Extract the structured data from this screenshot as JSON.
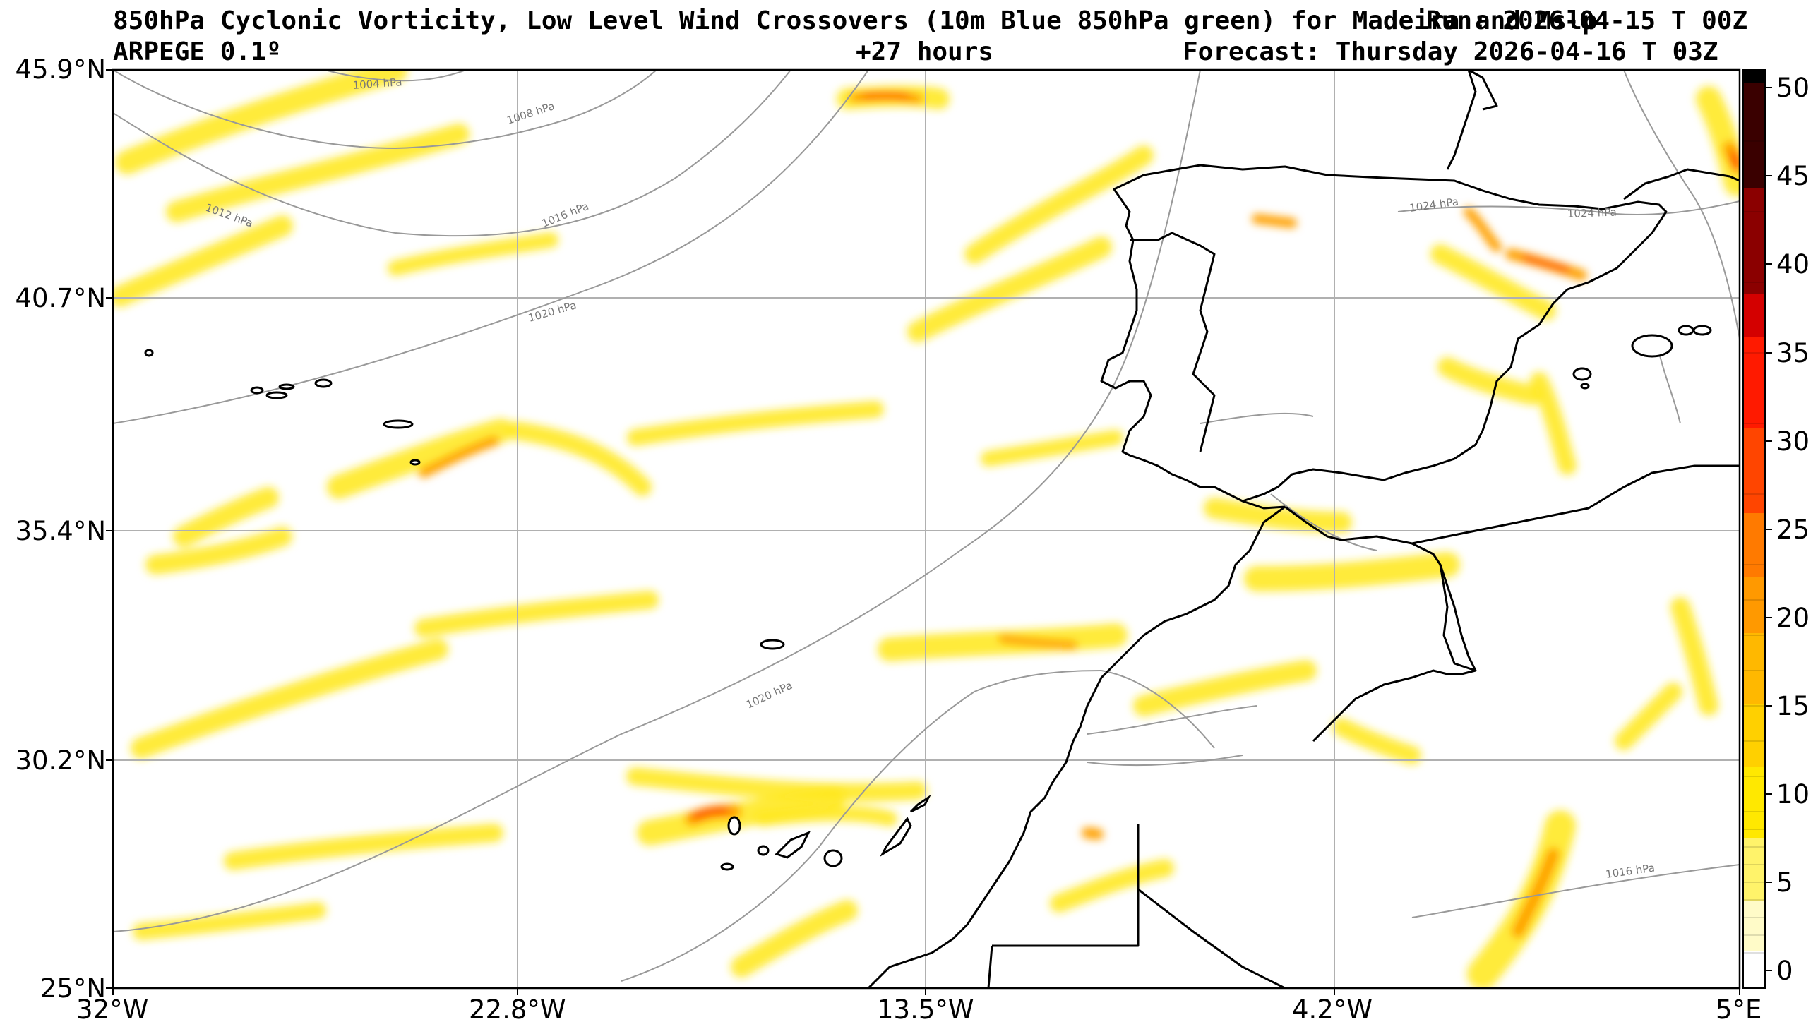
{
  "header": {
    "title": "850hPa Cyclonic Vorticity, Low Level Wind Crossovers (10m Blue 850hPa green) for Madeira and Mslp",
    "run": "Run: 2026-04-15 T 00Z",
    "model": "ARPEGE 0.1º",
    "lead": "+27 hours",
    "forecast": "Forecast: Thursday 2026-04-16 T 03Z"
  },
  "map": {
    "lat_labels": [
      "45.9°N",
      "40.7°N",
      "35.4°N",
      "30.2°N",
      "25°N"
    ],
    "lon_labels": [
      "32°W",
      "22.8°W",
      "13.5°W",
      "4.2°W",
      "5°E"
    ],
    "lat_range": [
      25,
      45.9
    ],
    "lon_range": [
      -32,
      5
    ],
    "isobar_labels": [
      "1004 hPa",
      "1008 hPa",
      "1012 hPa",
      "1016 hPa",
      "1020 hPa",
      "1020 hPa",
      "1024 hPa",
      "1024 hPa",
      "1016 hPa"
    ]
  },
  "colorbar": {
    "tick_labels": [
      "50",
      "45",
      "40",
      "35",
      "30",
      "25",
      "20",
      "15",
      "10",
      "5",
      "0"
    ],
    "range": [
      -1,
      51
    ],
    "colors": {
      "low": "#ffffff",
      "mid": "#ffe800",
      "orange": "#ff9900",
      "red": "#ff1a00",
      "dark": "#3a0000",
      "top": "#000000"
    }
  }
}
